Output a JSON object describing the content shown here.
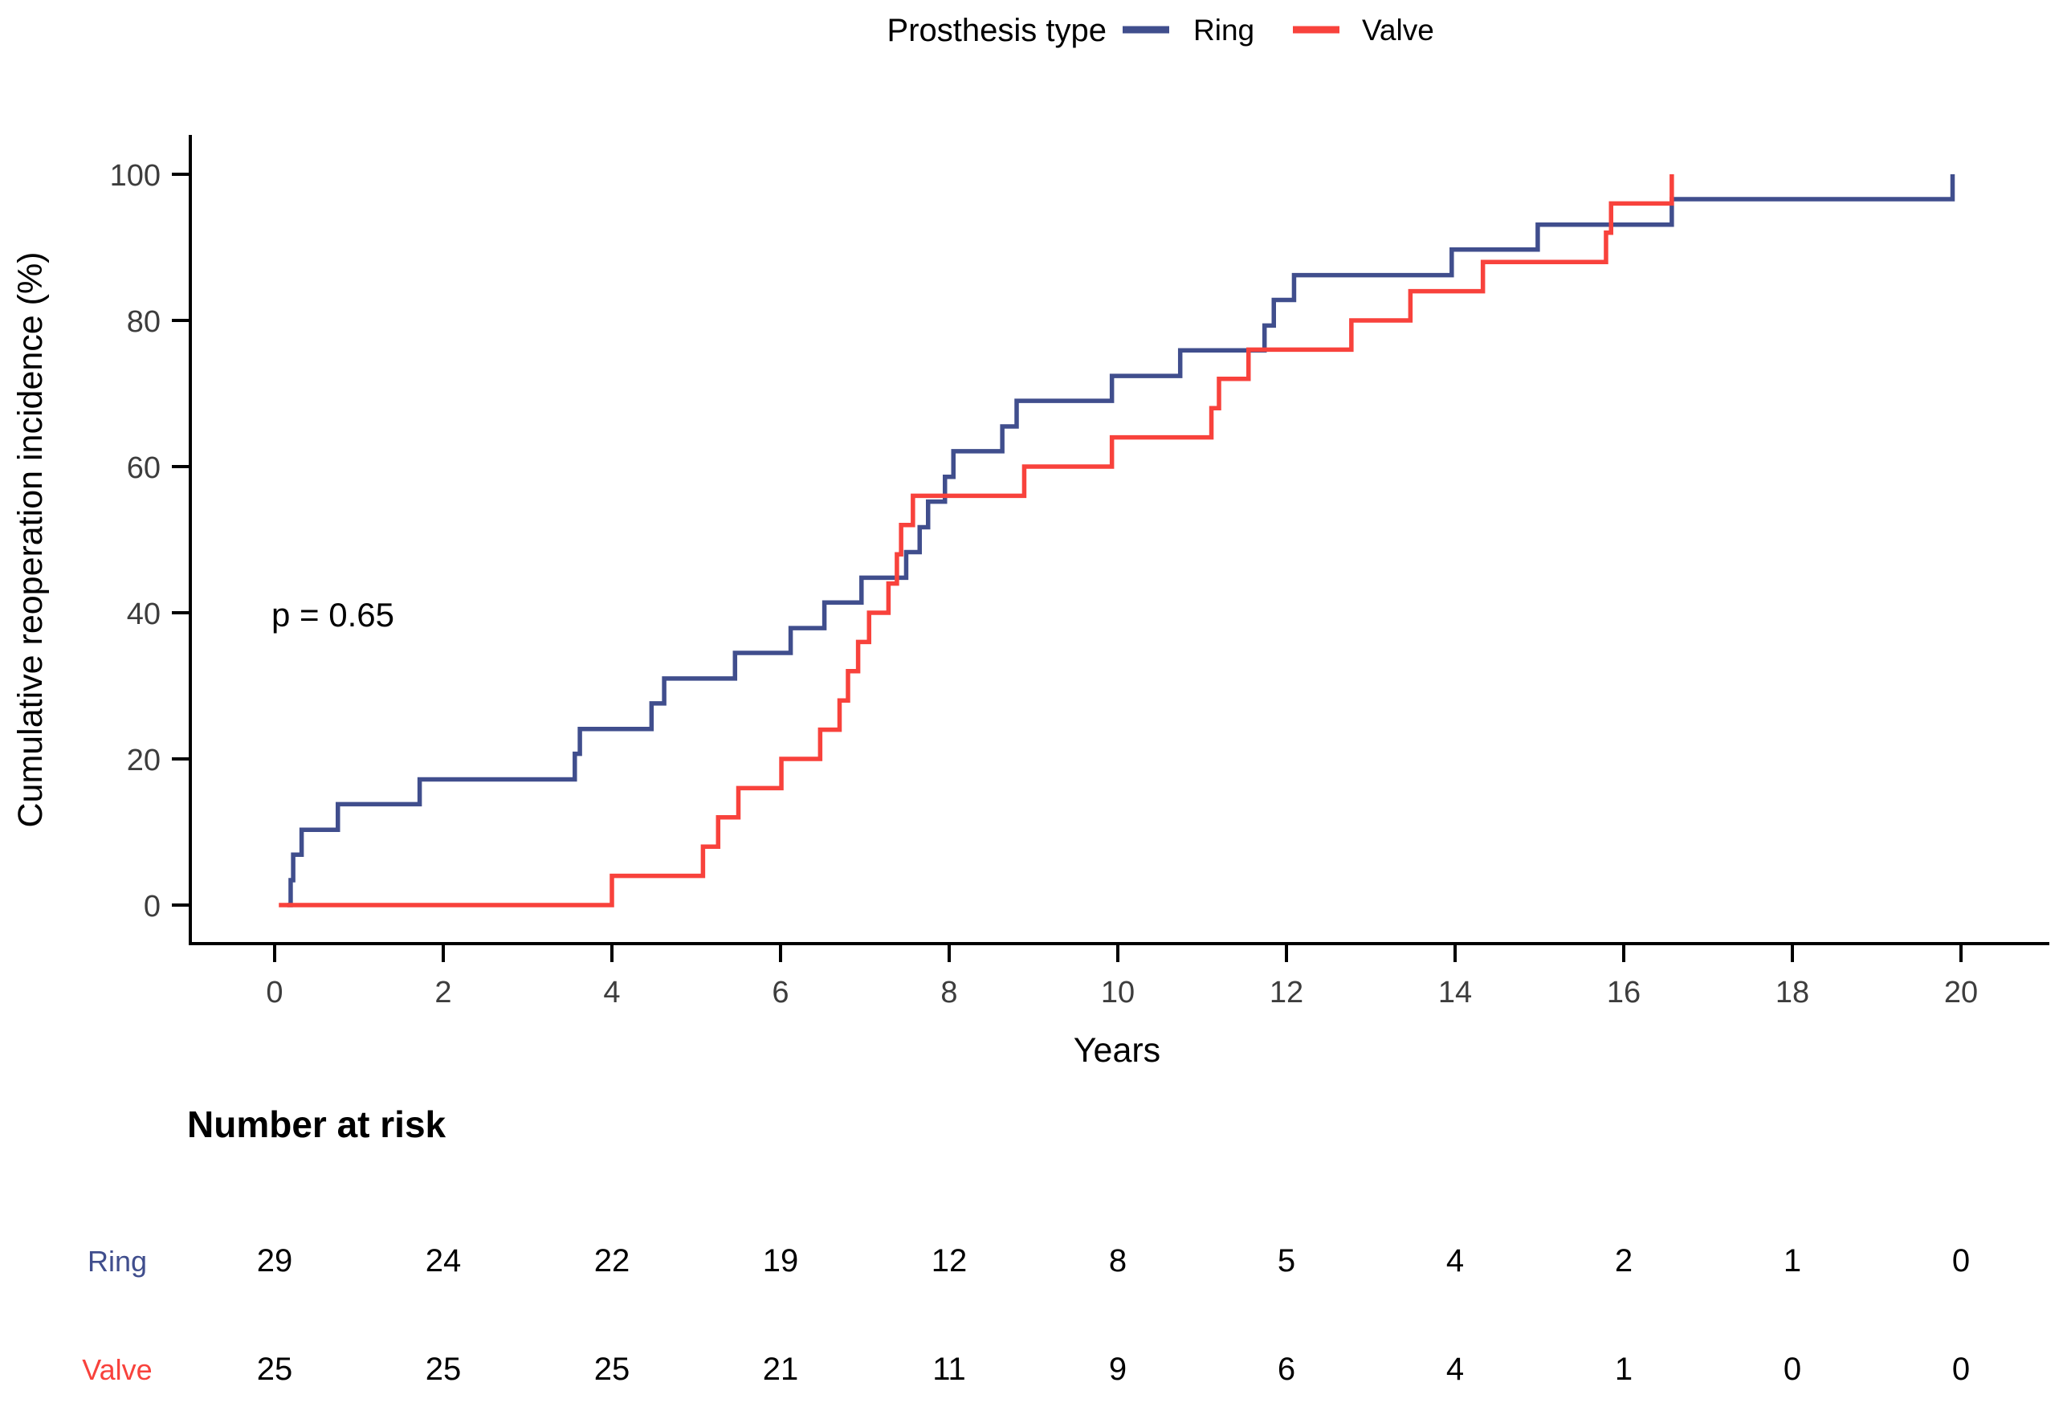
{
  "legend": {
    "title": "Prosthesis type",
    "items": [
      {
        "label": "Ring",
        "color": "#404e8d"
      },
      {
        "label": "Valve",
        "color": "#f8423c"
      }
    ]
  },
  "annotation": {
    "p_value": "p = 0.65"
  },
  "axes": {
    "x_label": "Years",
    "y_label": "Cumulative reoperation incidence (%)",
    "x_tick_labels": [
      "0",
      "2",
      "4",
      "6",
      "8",
      "10",
      "12",
      "14",
      "16",
      "18",
      "20"
    ],
    "y_tick_labels": [
      "0",
      "20",
      "40",
      "60",
      "80",
      "100"
    ]
  },
  "risk_table": {
    "title": "Number at risk",
    "years": [
      0,
      2,
      4,
      6,
      8,
      10,
      12,
      14,
      16,
      18,
      20
    ],
    "rows": [
      {
        "label": "Ring",
        "color": "#404e8d",
        "values": [
          29,
          24,
          22,
          19,
          12,
          8,
          5,
          4,
          2,
          1,
          0
        ]
      },
      {
        "label": "Valve",
        "color": "#f8423c",
        "values": [
          25,
          25,
          25,
          21,
          11,
          9,
          6,
          4,
          1,
          0,
          0
        ]
      }
    ]
  },
  "chart_data": {
    "type": "line",
    "subtype": "cumulative-incidence-step",
    "title": "Prosthesis type",
    "xlabel": "Years",
    "ylabel": "Cumulative reoperation incidence (%)",
    "xlim": [
      0,
      20
    ],
    "ylim": [
      0,
      100
    ],
    "x_ticks": [
      0,
      2,
      4,
      6,
      8,
      10,
      12,
      14,
      16,
      18,
      20
    ],
    "y_ticks": [
      0,
      20,
      40,
      60,
      80,
      100
    ],
    "grid": false,
    "legend_position": "top",
    "p_value_text": "p = 0.65",
    "series": [
      {
        "name": "Ring",
        "color": "#404e8d",
        "step_points": [
          [
            0.15,
            0
          ],
          [
            0.19,
            3.4
          ],
          [
            0.22,
            6.9
          ],
          [
            0.32,
            10.3
          ],
          [
            0.75,
            13.8
          ],
          [
            1.72,
            17.2
          ],
          [
            3.56,
            20.7
          ],
          [
            3.62,
            24.1
          ],
          [
            4.47,
            27.6
          ],
          [
            4.62,
            31.0
          ],
          [
            5.46,
            34.5
          ],
          [
            6.12,
            37.9
          ],
          [
            6.52,
            41.4
          ],
          [
            6.96,
            44.8
          ],
          [
            7.49,
            48.3
          ],
          [
            7.65,
            51.7
          ],
          [
            7.75,
            55.2
          ],
          [
            7.95,
            58.6
          ],
          [
            8.05,
            62.1
          ],
          [
            8.63,
            65.5
          ],
          [
            8.8,
            69.0
          ],
          [
            9.93,
            72.4
          ],
          [
            10.74,
            75.9
          ],
          [
            11.74,
            79.3
          ],
          [
            11.85,
            82.8
          ],
          [
            12.09,
            86.2
          ],
          [
            13.96,
            89.7
          ],
          [
            14.98,
            93.1
          ],
          [
            16.57,
            96.6
          ],
          [
            19.9,
            100
          ]
        ],
        "number_at_risk": {
          "years": [
            0,
            2,
            4,
            6,
            8,
            10,
            12,
            14,
            16,
            18,
            20
          ],
          "counts": [
            29,
            24,
            22,
            19,
            12,
            8,
            5,
            4,
            2,
            1,
            0
          ]
        }
      },
      {
        "name": "Valve",
        "color": "#f8423c",
        "step_points": [
          [
            0.05,
            0
          ],
          [
            4.0,
            4
          ],
          [
            5.08,
            8
          ],
          [
            5.26,
            12
          ],
          [
            5.5,
            16
          ],
          [
            6.01,
            20
          ],
          [
            6.47,
            24
          ],
          [
            6.7,
            28
          ],
          [
            6.8,
            32
          ],
          [
            6.92,
            36
          ],
          [
            7.05,
            40
          ],
          [
            7.28,
            44
          ],
          [
            7.38,
            48
          ],
          [
            7.43,
            52
          ],
          [
            7.57,
            56
          ],
          [
            8.89,
            60
          ],
          [
            9.93,
            64
          ],
          [
            11.11,
            68
          ],
          [
            11.2,
            72
          ],
          [
            11.55,
            76
          ],
          [
            12.77,
            80
          ],
          [
            13.47,
            84
          ],
          [
            14.33,
            88
          ],
          [
            15.79,
            92
          ],
          [
            15.85,
            96
          ],
          [
            16.57,
            100
          ]
        ],
        "number_at_risk": {
          "years": [
            0,
            2,
            4,
            6,
            8,
            10,
            12,
            14,
            16,
            18,
            20
          ],
          "counts": [
            25,
            25,
            25,
            21,
            11,
            9,
            6,
            4,
            1,
            0,
            0
          ]
        }
      }
    ]
  }
}
